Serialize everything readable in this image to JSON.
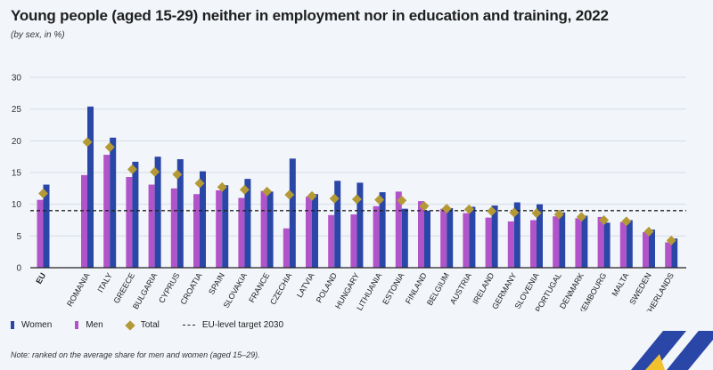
{
  "title": "Young people (aged 15-29) neither in employment nor in education and training, 2022",
  "subtitle": "(by sex, in %)",
  "note": "Note: ranked on the average share for men and women (aged 15–29).",
  "legend": {
    "women": "Women",
    "men": "Men",
    "total": "Total",
    "target": "EU-level target 2030"
  },
  "colors": {
    "women": "#2a46a7",
    "men": "#b154c9",
    "total": "#b39a36",
    "target": "#222222",
    "logo_blue": "#2a46a7",
    "logo_yellow": "#f2c12e"
  },
  "chart_data": {
    "type": "bar",
    "categories": [
      "EU",
      "ROMANIA",
      "ITALY",
      "GREECE",
      "BULGARIA",
      "CYPRUS",
      "CROATIA",
      "SPAIN",
      "SLOVAKIA",
      "FRANCE",
      "CZECHIA",
      "LATVIA",
      "POLAND",
      "HUNGARY",
      "LITHUANIA",
      "ESTONIA",
      "FINLAND",
      "BELGIUM",
      "AUSTRIA",
      "IRELAND",
      "GERMANY",
      "SLOVENIA",
      "PORTUGAL",
      "DENMARK",
      "LUXEMBOURG",
      "MALTA",
      "SWEDEN",
      "NETHERLANDS"
    ],
    "series": [
      {
        "name": "Men",
        "type": "bar",
        "values": [
          10.7,
          14.6,
          17.8,
          14.3,
          13.1,
          12.5,
          11.6,
          12.2,
          11.0,
          12.1,
          6.2,
          11.2,
          8.3,
          8.4,
          9.7,
          12.0,
          10.5,
          9.3,
          8.6,
          7.9,
          7.3,
          7.5,
          8.1,
          7.8,
          8.0,
          7.2,
          5.6,
          4.0
        ],
        "color": "#b154c9"
      },
      {
        "name": "Women",
        "type": "bar",
        "values": [
          13.1,
          25.4,
          20.5,
          16.7,
          17.5,
          17.1,
          15.2,
          13.0,
          14.0,
          12.0,
          17.2,
          11.6,
          13.7,
          13.4,
          11.9,
          9.3,
          9.0,
          9.4,
          9.6,
          9.8,
          10.3,
          10.0,
          8.7,
          8.2,
          7.1,
          7.5,
          6.0,
          4.6
        ],
        "color": "#2a46a7"
      },
      {
        "name": "Total",
        "type": "marker",
        "values": [
          11.7,
          19.8,
          19.0,
          15.5,
          15.1,
          14.7,
          13.3,
          12.7,
          12.3,
          12.0,
          11.5,
          11.3,
          10.9,
          10.8,
          10.7,
          10.6,
          9.7,
          9.3,
          9.2,
          8.9,
          8.7,
          8.6,
          8.4,
          8.0,
          7.5,
          7.3,
          5.7,
          4.3
        ],
        "color": "#b39a36"
      }
    ],
    "target": {
      "name": "EU-level target 2030",
      "value": 9
    },
    "ylim": [
      0,
      30
    ],
    "yticks": [
      "0",
      "5",
      "10",
      "15",
      "20",
      "25",
      "30"
    ],
    "yticks_values": [
      0,
      5,
      10,
      15,
      20,
      25,
      30
    ],
    "xlabel": "",
    "ylabel": "",
    "grid": true,
    "legend_position": "bottom-left"
  }
}
